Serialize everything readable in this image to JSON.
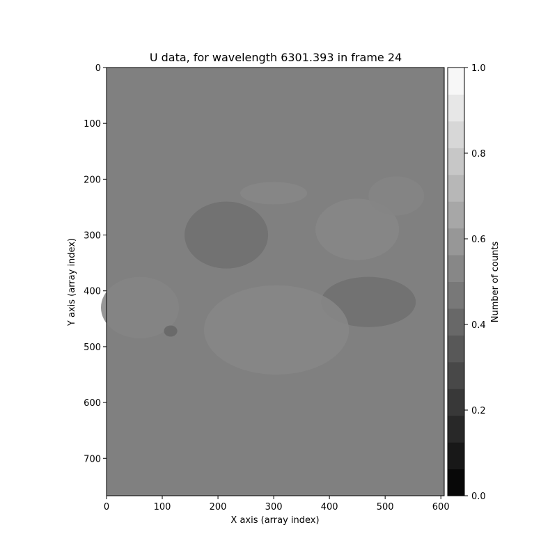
{
  "chart_data": {
    "type": "heatmap",
    "title": "U data,  for wavelength 6301.393 in frame 24",
    "xlabel": "X axis (array index)",
    "ylabel": "Y axis (array index)",
    "xlim": [
      0,
      606
    ],
    "ylim": [
      767,
      0
    ],
    "xticks": [
      0,
      100,
      200,
      300,
      400,
      500,
      600
    ],
    "yticks": [
      0,
      100,
      200,
      300,
      400,
      500,
      600,
      700
    ],
    "colormap": "gray",
    "background_value": 0.5,
    "colorbar": {
      "label": "Number of counts",
      "range": [
        0.0,
        1.0
      ],
      "ticks": [
        0.0,
        0.2,
        0.4,
        0.6,
        0.8,
        1.0
      ],
      "levels": 16
    },
    "regions": [
      {
        "kind": "dark",
        "value": 0.44,
        "center": [
          215,
          300
        ],
        "radius": [
          75,
          60
        ]
      },
      {
        "kind": "dark",
        "value": 0.44,
        "center": [
          470,
          420
        ],
        "radius": [
          85,
          45
        ]
      },
      {
        "kind": "light",
        "value": 0.53,
        "center": [
          450,
          290
        ],
        "radius": [
          75,
          55
        ]
      },
      {
        "kind": "light",
        "value": 0.53,
        "center": [
          305,
          470
        ],
        "radius": [
          130,
          80
        ]
      },
      {
        "kind": "light",
        "value": 0.52,
        "center": [
          60,
          430
        ],
        "radius": [
          70,
          55
        ]
      },
      {
        "kind": "light",
        "value": 0.52,
        "center": [
          520,
          230
        ],
        "radius": [
          50,
          35
        ]
      },
      {
        "kind": "dark",
        "value": 0.4,
        "center": [
          115,
          472
        ],
        "radius": [
          12,
          10
        ]
      },
      {
        "kind": "light",
        "value": 0.53,
        "center": [
          300,
          225
        ],
        "radius": [
          60,
          20
        ]
      }
    ]
  }
}
